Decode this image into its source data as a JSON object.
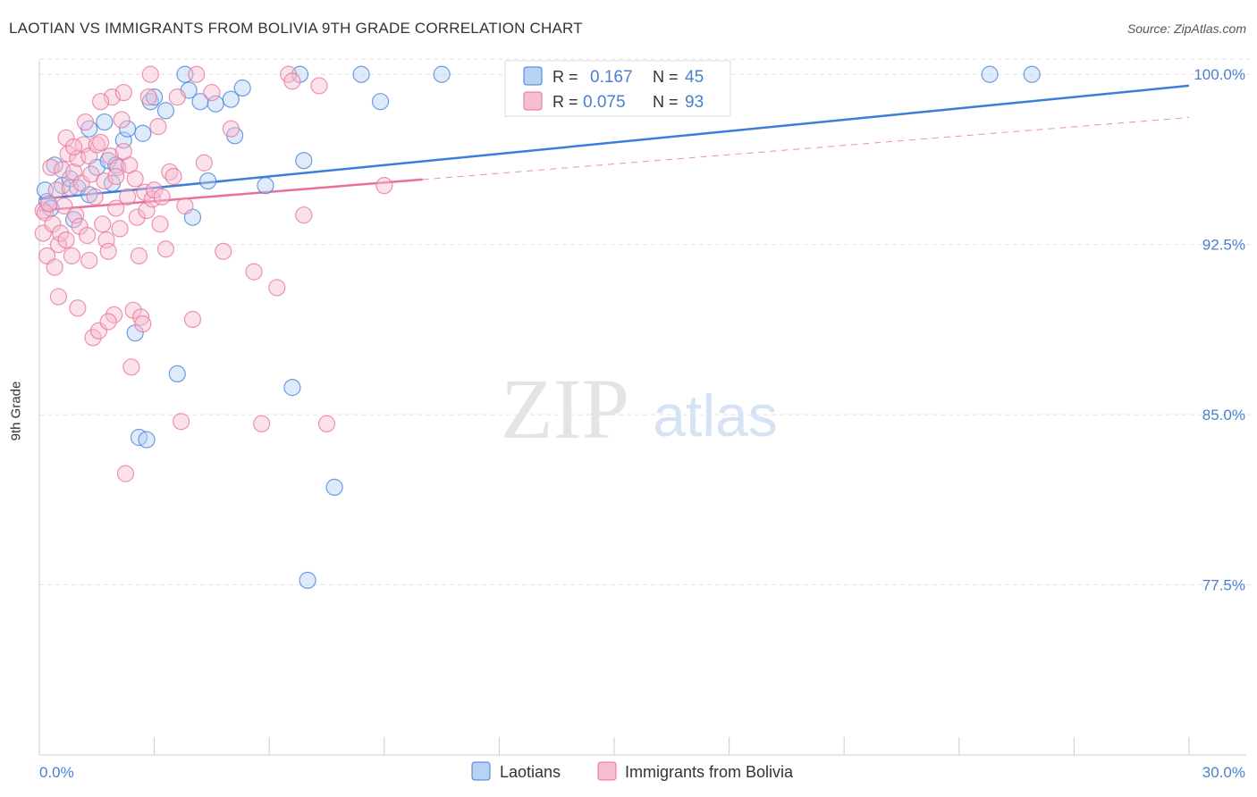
{
  "title": "LAOTIAN VS IMMIGRANTS FROM BOLIVIA 9TH GRADE CORRELATION CHART",
  "source": "Source: ZipAtlas.com",
  "watermark": {
    "zip": "ZIP",
    "atlas": "atlas"
  },
  "colors": {
    "blue": "#3d7fd8",
    "blue_fill": "#b9d1f3",
    "pink": "#e8709a",
    "pink_fill": "#f7bdd0",
    "tick_label": "#4a7fd0",
    "grid": "#e2e2e2"
  },
  "legend_box": {
    "rows": [
      {
        "r_label": "R = ",
        "r_value": "0.167",
        "n_label": "N = ",
        "n_value": "45",
        "series": "blue"
      },
      {
        "r_label": "R = ",
        "r_value": "0.075",
        "n_label": "N = ",
        "n_value": "93",
        "series": "pink"
      }
    ]
  },
  "chart_data": {
    "type": "scatter",
    "title": "LAOTIAN VS IMMIGRANTS FROM BOLIVIA 9TH GRADE CORRELATION CHART",
    "xlabel": "",
    "ylabel": "9th Grade",
    "xlim": [
      0,
      30
    ],
    "ylim": [
      70.0,
      100.6
    ],
    "x_tick_labels": [
      "0.0%",
      "30.0%"
    ],
    "y_ticks": [
      77.5,
      85.0,
      92.5,
      100.0
    ],
    "y_tick_labels": [
      "77.5%",
      "85.0%",
      "92.5%",
      "100.0%"
    ],
    "grid": true,
    "legend_position": "bottom-center",
    "series": [
      {
        "name": "Laotians",
        "color": "blue",
        "r": 0.167,
        "n": 45,
        "trend": {
          "x0": 0,
          "y0": 94.5,
          "x1": 30,
          "y1": 99.5,
          "solid_to": 30
        },
        "points": [
          [
            0.2,
            94.4
          ],
          [
            0.3,
            94.1
          ],
          [
            0.4,
            96.0
          ],
          [
            0.6,
            95.1
          ],
          [
            0.8,
            95.4
          ],
          [
            0.9,
            93.6
          ],
          [
            1.0,
            95.0
          ],
          [
            1.3,
            97.6
          ],
          [
            1.3,
            94.7
          ],
          [
            1.5,
            95.9
          ],
          [
            1.7,
            97.9
          ],
          [
            1.8,
            96.2
          ],
          [
            1.9,
            95.2
          ],
          [
            2.0,
            96.0
          ],
          [
            2.2,
            97.1
          ],
          [
            2.3,
            97.6
          ],
          [
            2.5,
            88.6
          ],
          [
            2.6,
            84.0
          ],
          [
            2.7,
            97.4
          ],
          [
            2.8,
            83.9
          ],
          [
            2.9,
            98.8
          ],
          [
            3.0,
            99.0
          ],
          [
            3.3,
            98.4
          ],
          [
            3.6,
            86.8
          ],
          [
            3.8,
            100.0
          ],
          [
            3.9,
            99.3
          ],
          [
            4.0,
            93.7
          ],
          [
            4.2,
            98.8
          ],
          [
            4.4,
            95.3
          ],
          [
            4.6,
            98.7
          ],
          [
            5.0,
            98.9
          ],
          [
            5.1,
            97.3
          ],
          [
            5.3,
            99.4
          ],
          [
            5.9,
            95.1
          ],
          [
            6.6,
            86.2
          ],
          [
            6.8,
            100.0
          ],
          [
            6.9,
            96.2
          ],
          [
            7.0,
            77.7
          ],
          [
            7.7,
            81.8
          ],
          [
            8.4,
            100.0
          ],
          [
            8.9,
            98.8
          ],
          [
            10.5,
            100.0
          ],
          [
            24.8,
            100.0
          ],
          [
            25.9,
            100.0
          ],
          [
            0.15,
            94.9
          ]
        ]
      },
      {
        "name": "Immigrants from Bolivia",
        "color": "pink",
        "r": 0.075,
        "n": 93,
        "trend": {
          "x0": 0,
          "y0": 94.0,
          "x1": 30,
          "y1": 98.1,
          "solid_to": 10.0
        },
        "points": [
          [
            0.1,
            94.0
          ],
          [
            0.1,
            93.0
          ],
          [
            0.15,
            93.9
          ],
          [
            0.2,
            92.0
          ],
          [
            0.25,
            94.3
          ],
          [
            0.3,
            95.9
          ],
          [
            0.35,
            93.4
          ],
          [
            0.4,
            91.5
          ],
          [
            0.45,
            94.9
          ],
          [
            0.5,
            92.5
          ],
          [
            0.55,
            93.0
          ],
          [
            0.6,
            95.8
          ],
          [
            0.65,
            94.2
          ],
          [
            0.7,
            97.2
          ],
          [
            0.75,
            96.5
          ],
          [
            0.8,
            95.0
          ],
          [
            0.85,
            92.0
          ],
          [
            0.9,
            95.7
          ],
          [
            0.95,
            93.8
          ],
          [
            1.0,
            96.3
          ],
          [
            1.05,
            93.3
          ],
          [
            1.1,
            95.2
          ],
          [
            1.15,
            96.9
          ],
          [
            1.2,
            97.9
          ],
          [
            1.25,
            92.9
          ],
          [
            1.3,
            96.4
          ],
          [
            1.35,
            95.6
          ],
          [
            1.4,
            88.4
          ],
          [
            1.45,
            94.6
          ],
          [
            1.5,
            96.9
          ],
          [
            1.55,
            88.7
          ],
          [
            1.6,
            97.0
          ],
          [
            1.65,
            93.4
          ],
          [
            1.7,
            95.3
          ],
          [
            1.75,
            92.7
          ],
          [
            1.8,
            92.2
          ],
          [
            1.85,
            96.4
          ],
          [
            1.9,
            99.0
          ],
          [
            1.95,
            89.4
          ],
          [
            2.0,
            94.1
          ],
          [
            2.05,
            95.9
          ],
          [
            2.1,
            93.2
          ],
          [
            2.15,
            98.0
          ],
          [
            2.2,
            99.2
          ],
          [
            2.25,
            82.4
          ],
          [
            2.3,
            94.6
          ],
          [
            2.35,
            96.0
          ],
          [
            2.4,
            87.1
          ],
          [
            2.45,
            89.6
          ],
          [
            2.5,
            95.4
          ],
          [
            2.55,
            93.7
          ],
          [
            2.6,
            92.0
          ],
          [
            2.65,
            89.3
          ],
          [
            2.7,
            89.0
          ],
          [
            2.75,
            94.8
          ],
          [
            2.8,
            94.0
          ],
          [
            2.85,
            99.0
          ],
          [
            2.9,
            100.0
          ],
          [
            2.95,
            94.5
          ],
          [
            3.0,
            94.9
          ],
          [
            3.1,
            97.7
          ],
          [
            3.15,
            93.4
          ],
          [
            3.2,
            94.6
          ],
          [
            3.3,
            92.3
          ],
          [
            3.4,
            95.7
          ],
          [
            3.5,
            95.5
          ],
          [
            3.6,
            99.0
          ],
          [
            3.8,
            94.2
          ],
          [
            4.0,
            89.2
          ],
          [
            4.1,
            100.0
          ],
          [
            4.3,
            96.1
          ],
          [
            4.5,
            99.2
          ],
          [
            4.8,
            92.2
          ],
          [
            5.0,
            97.6
          ],
          [
            5.6,
            91.3
          ],
          [
            6.2,
            90.6
          ],
          [
            6.5,
            100.0
          ],
          [
            6.6,
            99.7
          ],
          [
            6.9,
            93.8
          ],
          [
            7.3,
            99.5
          ],
          [
            7.5,
            84.6
          ],
          [
            9.0,
            95.1
          ],
          [
            2.0,
            95.5
          ],
          [
            1.0,
            89.7
          ],
          [
            0.5,
            90.2
          ],
          [
            3.7,
            84.7
          ],
          [
            1.8,
            89.1
          ],
          [
            5.8,
            84.6
          ],
          [
            0.9,
            96.8
          ],
          [
            1.6,
            98.8
          ],
          [
            2.2,
            96.6
          ],
          [
            1.3,
            91.8
          ],
          [
            0.7,
            92.7
          ]
        ]
      }
    ]
  },
  "bottom_legend": [
    {
      "label": "Laotians",
      "series": "blue"
    },
    {
      "label": "Immigrants from Bolivia",
      "series": "pink"
    }
  ]
}
